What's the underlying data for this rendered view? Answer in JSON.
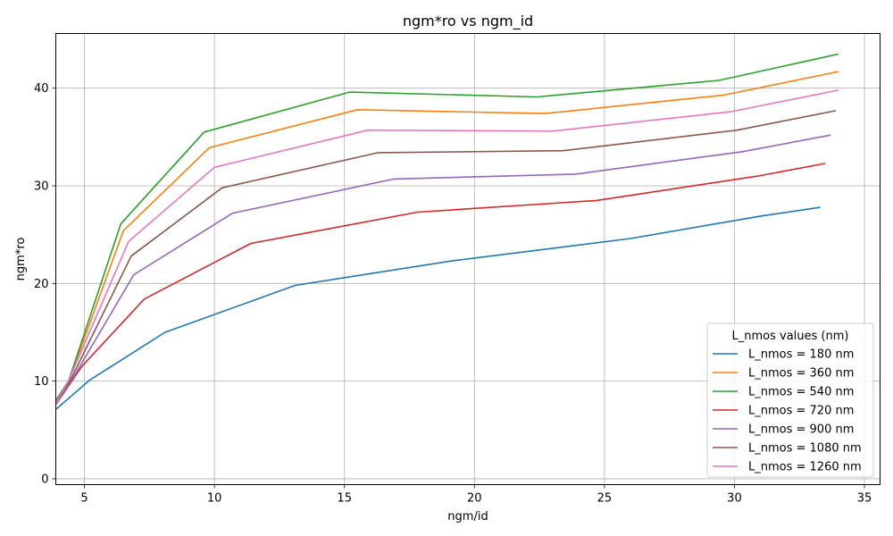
{
  "chart_data": {
    "type": "line",
    "title": "ngm*ro vs ngm_id",
    "xlabel": "ngm/id",
    "ylabel": "ngm*ro",
    "xlim": [
      3.9,
      35.6
    ],
    "ylim": [
      -0.6,
      45.6
    ],
    "xticks": [
      5,
      10,
      15,
      20,
      25,
      30,
      35
    ],
    "yticks": [
      0,
      10,
      20,
      30,
      40
    ],
    "grid": true,
    "legend_title": "L_nmos values (nm)",
    "legend_position": "lower-right",
    "series": [
      {
        "name": "L_nmos = 180 nm",
        "color": "#1f77b4",
        "x": [
          3.9,
          5.2,
          8.1,
          13.1,
          19.1,
          26.0,
          31.0,
          33.3
        ],
        "y": [
          7.1,
          10.1,
          15.0,
          19.8,
          22.3,
          24.6,
          26.9,
          27.8
        ]
      },
      {
        "name": "L_nmos = 360 nm",
        "color": "#ff7f0e",
        "x": [
          3.9,
          4.4,
          6.5,
          9.8,
          15.5,
          22.7,
          29.6,
          34.0
        ],
        "y": [
          7.8,
          10.0,
          25.4,
          33.9,
          37.8,
          37.4,
          39.3,
          41.7
        ]
      },
      {
        "name": "L_nmos = 540 nm",
        "color": "#2ca02c",
        "x": [
          3.9,
          4.4,
          6.4,
          9.6,
          15.2,
          22.4,
          29.4,
          34.0
        ],
        "y": [
          8.0,
          10.1,
          26.1,
          35.5,
          39.6,
          39.1,
          40.8,
          43.5
        ]
      },
      {
        "name": "L_nmos = 720 nm",
        "color": "#d62728",
        "x": [
          3.9,
          4.9,
          7.3,
          11.4,
          17.8,
          24.7,
          30.9,
          33.5
        ],
        "y": [
          7.6,
          11.5,
          18.4,
          24.1,
          27.3,
          28.5,
          31.0,
          32.3
        ]
      },
      {
        "name": "L_nmos = 900 nm",
        "color": "#9467bd",
        "x": [
          3.9,
          4.6,
          6.9,
          10.7,
          16.9,
          23.9,
          30.3,
          33.7
        ],
        "y": [
          7.6,
          10.5,
          20.9,
          27.2,
          30.7,
          31.2,
          33.5,
          35.2
        ]
      },
      {
        "name": "L_nmos = 1080 nm",
        "color": "#8c564b",
        "x": [
          3.9,
          4.5,
          6.8,
          10.3,
          16.3,
          23.4,
          30.1,
          33.9
        ],
        "y": [
          7.7,
          10.3,
          22.8,
          29.8,
          33.4,
          33.6,
          35.7,
          37.7
        ]
      },
      {
        "name": "L_nmos = 1260 nm",
        "color": "#e377c2",
        "x": [
          3.9,
          4.4,
          6.7,
          10.0,
          15.9,
          23.0,
          29.9,
          34.0
        ],
        "y": [
          7.7,
          10.1,
          24.3,
          31.9,
          35.7,
          35.6,
          37.6,
          39.8
        ]
      }
    ]
  }
}
